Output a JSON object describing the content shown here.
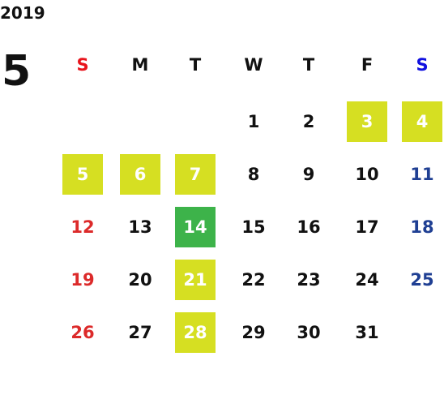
{
  "year": "2019",
  "month": "5",
  "weekdays": [
    {
      "label": "S",
      "color": "#e8141c",
      "day_color": "#dc2a2a"
    },
    {
      "label": "M",
      "color": "#111111",
      "day_color": "#111111"
    },
    {
      "label": "T",
      "color": "#111111",
      "day_color": "#111111"
    },
    {
      "label": "W",
      "color": "#111111",
      "day_color": "#111111"
    },
    {
      "label": "T",
      "color": "#111111",
      "day_color": "#111111"
    },
    {
      "label": "F",
      "color": "#111111",
      "day_color": "#111111"
    },
    {
      "label": "S",
      "color": "#1010e0",
      "day_color": "#1f3f93"
    }
  ],
  "weeks": [
    [
      null,
      null,
      null,
      {
        "day": 1
      },
      {
        "day": 2
      },
      {
        "day": 3,
        "fill": "#d6df22"
      },
      {
        "day": 4,
        "fill": "#d6df22"
      }
    ],
    [
      {
        "day": 5,
        "fill": "#d6df22"
      },
      {
        "day": 6,
        "fill": "#d6df22"
      },
      {
        "day": 7,
        "fill": "#d6df22"
      },
      {
        "day": 8
      },
      {
        "day": 9
      },
      {
        "day": 10
      },
      {
        "day": 11
      }
    ],
    [
      {
        "day": 12
      },
      {
        "day": 13
      },
      {
        "day": 14,
        "fill": "#3db34a"
      },
      {
        "day": 15
      },
      {
        "day": 16
      },
      {
        "day": 17
      },
      {
        "day": 18
      }
    ],
    [
      {
        "day": 19
      },
      {
        "day": 20
      },
      {
        "day": 21,
        "fill": "#d6df22"
      },
      {
        "day": 22
      },
      {
        "day": 23
      },
      {
        "day": 24
      },
      {
        "day": 25
      }
    ],
    [
      {
        "day": 26
      },
      {
        "day": 27
      },
      {
        "day": 28,
        "fill": "#d6df22"
      },
      {
        "day": 29
      },
      {
        "day": 30
      },
      {
        "day": 31
      },
      null
    ]
  ]
}
